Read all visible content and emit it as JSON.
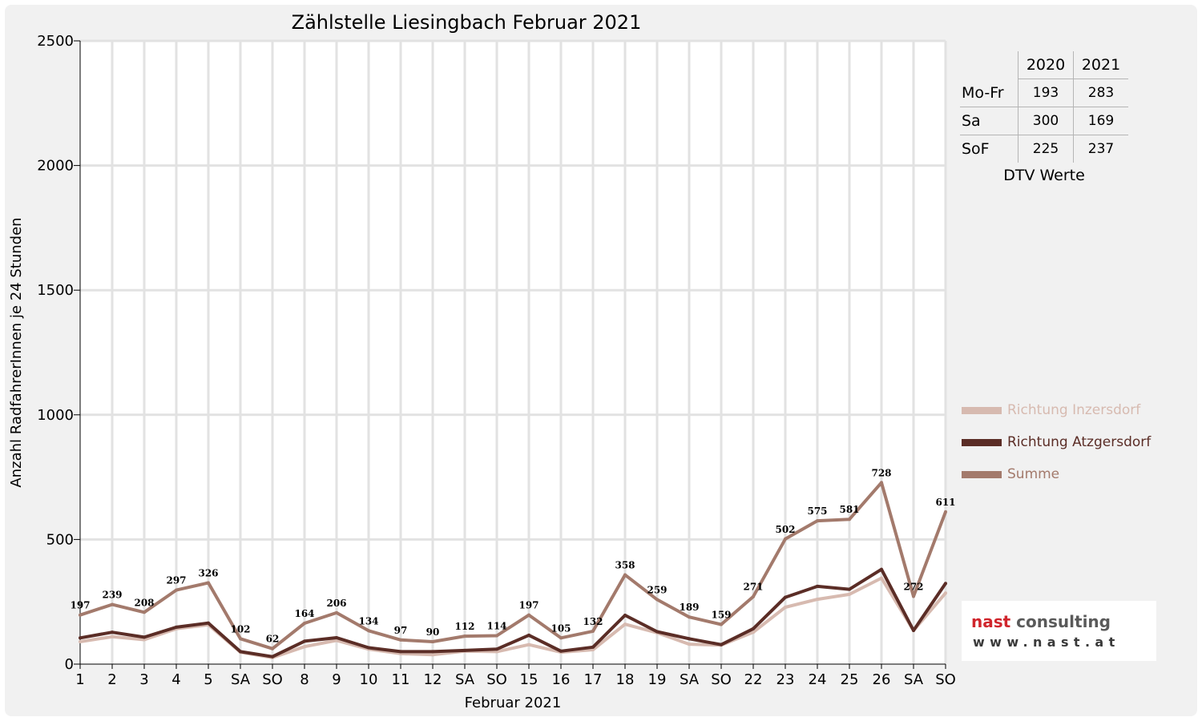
{
  "chart_data": {
    "type": "line",
    "title": "Zählstelle Liesingbach Februar 2021",
    "xlabel": "Februar 2021",
    "ylabel": "Anzahl RadfahrerInnen je 24 Stunden",
    "ylim": [
      0,
      2500
    ],
    "yticks": [
      0,
      500,
      1000,
      1500,
      2000,
      2500
    ],
    "grid": true,
    "legend_position": "right",
    "categories": [
      "1",
      "2",
      "3",
      "4",
      "5",
      "SA",
      "SO",
      "8",
      "9",
      "10",
      "11",
      "12",
      "SA",
      "SO",
      "15",
      "16",
      "17",
      "18",
      "19",
      "SA",
      "SO",
      "22",
      "23",
      "24",
      "25",
      "26",
      "SA",
      "SO"
    ],
    "weekend_days": [
      "SO"
    ],
    "weekend_color": "#ff0000",
    "series": [
      {
        "name": "Richtung Inzersdorf",
        "color": "#d7bab0",
        "values": [
          90,
          110,
          98,
          142,
          158,
          48,
          26,
          70,
          95,
          60,
          42,
          38,
          52,
          50,
          78,
          48,
          58,
          160,
          126,
          80,
          76,
          128,
          228,
          260,
          280,
          345,
          135,
          285
        ]
      },
      {
        "name": "Richtung Atzgersdorf",
        "color": "#5b2d26",
        "values": [
          105,
          128,
          108,
          148,
          165,
          50,
          30,
          92,
          106,
          66,
          50,
          50,
          55,
          60,
          116,
          52,
          68,
          196,
          130,
          102,
          78,
          142,
          268,
          312,
          300,
          380,
          135,
          324
        ]
      },
      {
        "name": "Summe",
        "color": "#a37a6c",
        "values": [
          197,
          239,
          208,
          297,
          326,
          102,
          62,
          164,
          206,
          134,
          97,
          90,
          112,
          114,
          197,
          105,
          132,
          358,
          259,
          189,
          159,
          271,
          502,
          575,
          581,
          728,
          272,
          611
        ],
        "labels": true
      }
    ]
  },
  "dtv_table": {
    "headers": [
      "2020",
      "2021"
    ],
    "rows": [
      {
        "label": "Mo-Fr",
        "values": [
          "193",
          "283"
        ]
      },
      {
        "label": "Sa",
        "values": [
          "300",
          "169"
        ]
      },
      {
        "label": "SoF",
        "values": [
          "225",
          "237"
        ]
      }
    ],
    "caption": "DTV Werte"
  },
  "logo": {
    "name_part1": "nast",
    "name_part2": "consulting",
    "url": "www.nast.at"
  }
}
